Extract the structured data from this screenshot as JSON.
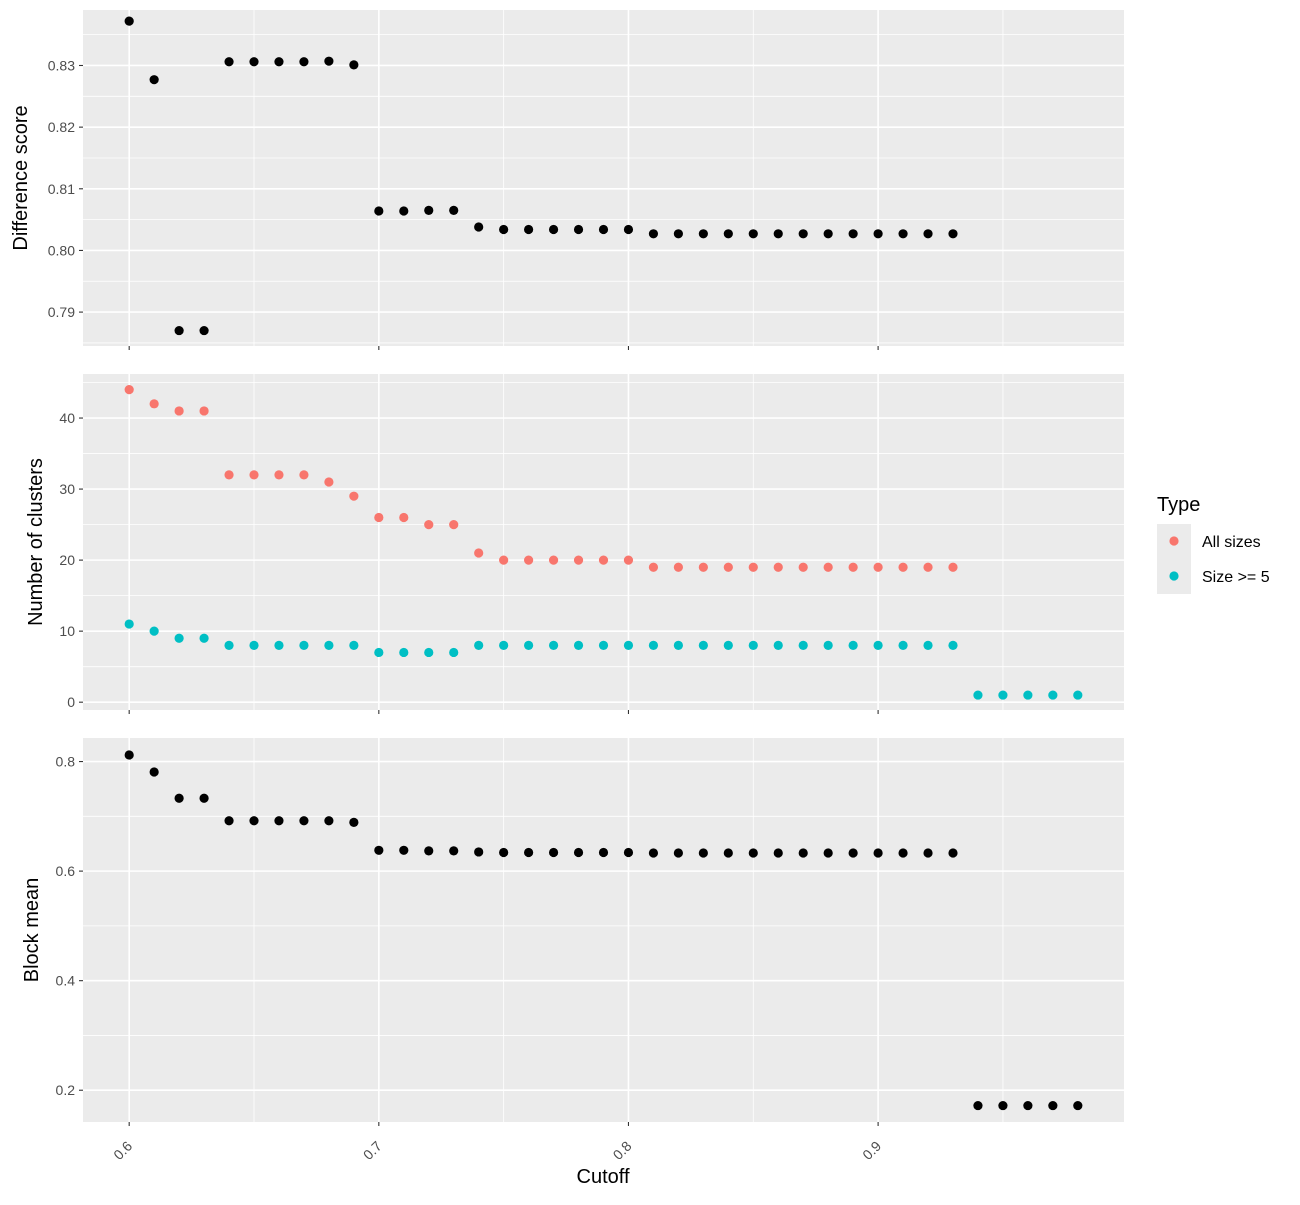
{
  "chart_data": [
    {
      "type": "scatter",
      "ylabel": "Difference score",
      "ylim": [
        0.7845,
        0.839
      ],
      "y_ticks": [
        "0.79",
        "0.80",
        "0.81",
        "0.82",
        "0.83"
      ],
      "y_tick_values": [
        0.79,
        0.8,
        0.81,
        0.82,
        0.83
      ],
      "series": [
        {
          "color": "#000000",
          "x": [
            0.6,
            0.61,
            0.62,
            0.63,
            0.64,
            0.65,
            0.66,
            0.67,
            0.68,
            0.69,
            0.7,
            0.71,
            0.72,
            0.73,
            0.74,
            0.75,
            0.76,
            0.77,
            0.78,
            0.79,
            0.8,
            0.81,
            0.82,
            0.83,
            0.84,
            0.85,
            0.86,
            0.87,
            0.88,
            0.89,
            0.9,
            0.91,
            0.92,
            0.93
          ],
          "y": [
            0.8372,
            0.8277,
            0.787,
            0.787,
            0.8306,
            0.8306,
            0.8306,
            0.8306,
            0.8307,
            0.8301,
            0.8064,
            0.8064,
            0.8065,
            0.8065,
            0.8038,
            0.8034,
            0.8034,
            0.8034,
            0.8034,
            0.8034,
            0.8034,
            0.8027,
            0.8027,
            0.8027,
            0.8027,
            0.8027,
            0.8027,
            0.8027,
            0.8027,
            0.8027,
            0.8027,
            0.8027,
            0.8027,
            0.8027
          ]
        }
      ]
    },
    {
      "type": "scatter",
      "ylabel": "Number of clusters",
      "ylim": [
        -1.1,
        46.2
      ],
      "y_ticks": [
        "0",
        "10",
        "20",
        "30",
        "40"
      ],
      "y_tick_values": [
        0,
        10,
        20,
        30,
        40
      ],
      "series": [
        {
          "name": "All sizes",
          "color": "#F8766D",
          "x": [
            0.6,
            0.61,
            0.62,
            0.63,
            0.64,
            0.65,
            0.66,
            0.67,
            0.68,
            0.69,
            0.7,
            0.71,
            0.72,
            0.73,
            0.74,
            0.75,
            0.76,
            0.77,
            0.78,
            0.79,
            0.8,
            0.81,
            0.82,
            0.83,
            0.84,
            0.85,
            0.86,
            0.87,
            0.88,
            0.89,
            0.9,
            0.91,
            0.92,
            0.93
          ],
          "y": [
            44,
            42,
            41,
            41,
            32,
            32,
            32,
            32,
            31,
            29,
            26,
            26,
            25,
            25,
            21,
            20,
            20,
            20,
            20,
            20,
            20,
            19,
            19,
            19,
            19,
            19,
            19,
            19,
            19,
            19,
            19,
            19,
            19,
            19
          ]
        },
        {
          "name": "Size >= 5",
          "color": "#00BFC4",
          "x": [
            0.6,
            0.61,
            0.62,
            0.63,
            0.64,
            0.65,
            0.66,
            0.67,
            0.68,
            0.69,
            0.7,
            0.71,
            0.72,
            0.73,
            0.74,
            0.75,
            0.76,
            0.77,
            0.78,
            0.79,
            0.8,
            0.81,
            0.82,
            0.83,
            0.84,
            0.85,
            0.86,
            0.87,
            0.88,
            0.89,
            0.9,
            0.91,
            0.92,
            0.93,
            0.94,
            0.95,
            0.96,
            0.97,
            0.98
          ],
          "y": [
            11,
            10,
            9,
            9,
            8,
            8,
            8,
            8,
            8,
            8,
            7,
            7,
            7,
            7,
            8,
            8,
            8,
            8,
            8,
            8,
            8,
            8,
            8,
            8,
            8,
            8,
            8,
            8,
            8,
            8,
            8,
            8,
            8,
            8,
            1,
            1,
            1,
            1,
            1
          ]
        }
      ]
    },
    {
      "type": "scatter",
      "ylabel": "Block mean",
      "ylim": [
        0.142,
        0.843
      ],
      "y_ticks": [
        "0.2",
        "0.4",
        "0.6",
        "0.8"
      ],
      "y_tick_values": [
        0.2,
        0.4,
        0.6,
        0.8
      ],
      "series": [
        {
          "color": "#000000",
          "x": [
            0.6,
            0.61,
            0.62,
            0.63,
            0.64,
            0.65,
            0.66,
            0.67,
            0.68,
            0.69,
            0.7,
            0.71,
            0.72,
            0.73,
            0.74,
            0.75,
            0.76,
            0.77,
            0.78,
            0.79,
            0.8,
            0.81,
            0.82,
            0.83,
            0.84,
            0.85,
            0.86,
            0.87,
            0.88,
            0.89,
            0.9,
            0.91,
            0.92,
            0.93,
            0.94,
            0.95,
            0.96,
            0.97,
            0.98
          ],
          "y": [
            0.812,
            0.781,
            0.733,
            0.733,
            0.692,
            0.692,
            0.692,
            0.692,
            0.692,
            0.689,
            0.638,
            0.638,
            0.637,
            0.637,
            0.635,
            0.634,
            0.634,
            0.634,
            0.634,
            0.634,
            0.634,
            0.633,
            0.633,
            0.633,
            0.633,
            0.633,
            0.633,
            0.633,
            0.633,
            0.633,
            0.633,
            0.633,
            0.633,
            0.633,
            0.172,
            0.172,
            0.172,
            0.172,
            0.172
          ]
        }
      ]
    }
  ],
  "shared_x": {
    "label": "Cutoff",
    "xlim": [
      0.5815,
      0.9985
    ],
    "ticks": [
      "0.6",
      "0.7",
      "0.8",
      "0.9"
    ],
    "tick_values": [
      0.6,
      0.7,
      0.8,
      0.9
    ],
    "minor_tick_values": [
      0.65,
      0.75,
      0.85,
      0.95
    ]
  },
  "legend": {
    "title": "Type",
    "placement": "right",
    "items": [
      {
        "label": "All sizes",
        "color": "#F8766D"
      },
      {
        "label": "Size >= 5",
        "color": "#00BFC4"
      }
    ]
  }
}
